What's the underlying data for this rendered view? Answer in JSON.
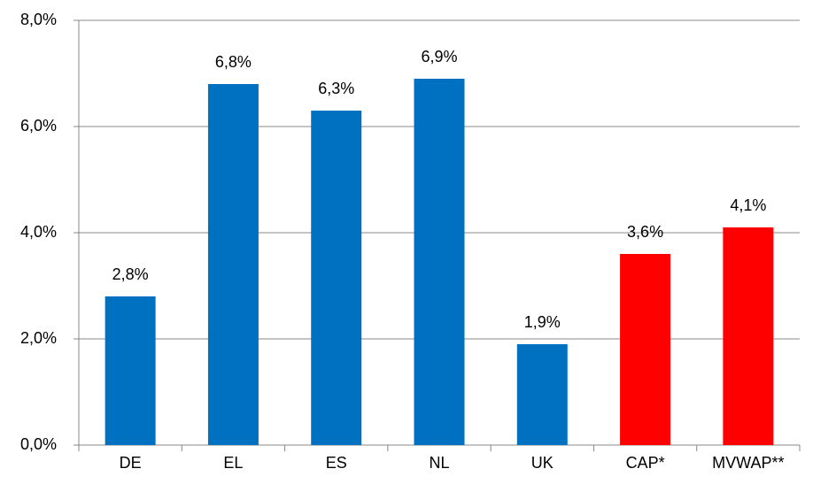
{
  "chart_data": {
    "type": "bar",
    "categories": [
      "DE",
      "EL",
      "ES",
      "NL",
      "UK",
      "CAP*",
      "MVWAP**"
    ],
    "values": [
      2.8,
      6.8,
      6.3,
      6.9,
      1.9,
      3.6,
      4.1
    ],
    "value_labels": [
      "2,8%",
      "6,8%",
      "6,3%",
      "6,9%",
      "1,9%",
      "3,6%",
      "4,1%"
    ],
    "colors": [
      "#0070c0",
      "#0070c0",
      "#0070c0",
      "#0070c0",
      "#0070c0",
      "#ff0000",
      "#ff0000"
    ],
    "ylim": [
      0,
      8
    ],
    "yticks": [
      {
        "value": 0,
        "label": "0,0%"
      },
      {
        "value": 2,
        "label": "2,0%"
      },
      {
        "value": 4,
        "label": "4,0%"
      },
      {
        "value": 6,
        "label": "6,0%"
      },
      {
        "value": 8,
        "label": "8,0%"
      }
    ],
    "grid": true
  }
}
